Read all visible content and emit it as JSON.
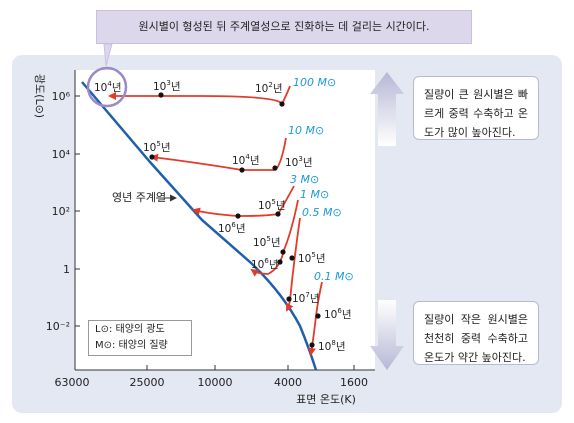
{
  "callout_top": "원시별이 형성된 뒤 주계열성으로 진화하는 데 걸리는 시간이다.",
  "note_top": "질량이 큰 원시별은 빠르게 중력 수축하고 온도가 많이 높아진다.",
  "note_bottom": "질량이 작은 원시별은 천천히 중력 수축하고 온도가 약간 높아진다.",
  "main_sequence_label": "영년 주계열",
  "legend": {
    "lum_line": "L⊙: 태양의 광도",
    "mass_line": "M⊙: 태양의 질량"
  },
  "colors": {
    "track": "#e03c2a",
    "main_sequence": "#1f5fae",
    "mass_label": "#1a9ad6",
    "callout_bg": "#ddd7ec",
    "panel_bg": "#e3e8f2"
  },
  "chart_data": {
    "type": "line",
    "xlabel": "표면 온도(K)",
    "ylabel": "광도(L⊙)",
    "x_ticks": [
      "63000",
      "25000",
      "10000",
      "4000",
      "1600"
    ],
    "y_ticks": [
      "10⁶",
      "10⁴",
      "10²",
      "1",
      "10⁻²"
    ],
    "series": [
      {
        "name": "100 M⊙"
      },
      {
        "name": "10 M⊙"
      },
      {
        "name": "3 M⊙"
      },
      {
        "name": "1 M⊙"
      },
      {
        "name": "0.5 M⊙"
      },
      {
        "name": "0.1 M⊙"
      }
    ],
    "time_labels": [
      {
        "base": "10",
        "exp": "4",
        "unit": "년"
      },
      {
        "base": "10",
        "exp": "3",
        "unit": "년"
      },
      {
        "base": "10",
        "exp": "2",
        "unit": "년"
      },
      {
        "base": "10",
        "exp": "5",
        "unit": "년"
      },
      {
        "base": "10",
        "exp": "4",
        "unit": "년"
      },
      {
        "base": "10",
        "exp": "3",
        "unit": "년"
      },
      {
        "base": "10",
        "exp": "5",
        "unit": "년"
      },
      {
        "base": "10",
        "exp": "6",
        "unit": "년"
      },
      {
        "base": "10",
        "exp": "5",
        "unit": "년"
      },
      {
        "base": "10",
        "exp": "6",
        "unit": "년"
      },
      {
        "base": "10",
        "exp": "5",
        "unit": "년"
      },
      {
        "base": "10",
        "exp": "7",
        "unit": "년"
      },
      {
        "base": "10",
        "exp": "6",
        "unit": "년"
      },
      {
        "base": "10",
        "exp": "8",
        "unit": "년"
      }
    ]
  }
}
